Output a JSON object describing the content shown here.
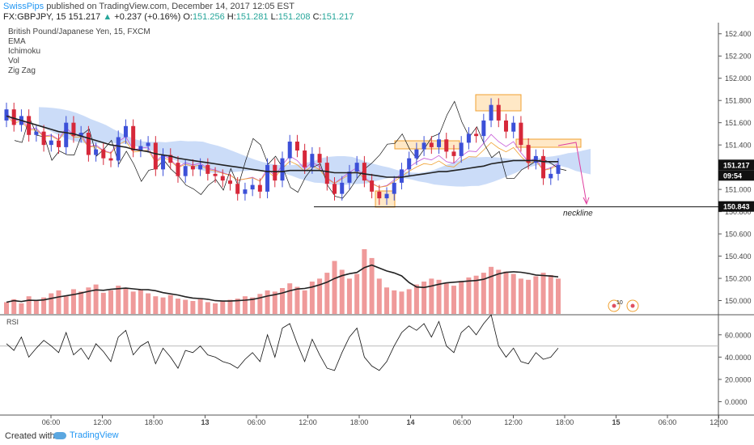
{
  "header": {
    "user": "SwissPips",
    "published": "published on TradingView.com, December 14, 2017 12:05 EST",
    "symbol": "FX:GBPJPY, 15",
    "last": "151.217",
    "change": "+0.237 (+0.16%)",
    "o_label": "O:",
    "o": "151.256",
    "h_label": "H:",
    "h": "151.281",
    "l_label": "L:",
    "l": "151.208",
    "c_label": "C:",
    "c": "151.217"
  },
  "legend": {
    "title": "British Pound/Japanese Yen, 15, FXCM",
    "items": [
      "EMA",
      "Ichimoku",
      "Vol",
      "Zig Zag"
    ]
  },
  "annotations": {
    "neckline": "neckline",
    "event_badge": "10"
  },
  "price_badges": {
    "last": "151.217",
    "countdown": "09:54",
    "neckline_price": "150.843"
  },
  "rsi_label": "RSI",
  "footer": {
    "created": "Created with",
    "brand": "TradingView"
  },
  "colors": {
    "up": "#26a69a",
    "candle_up": "#3c50d8",
    "candle_down": "#d6283a",
    "ema": "#222222",
    "cloud": "#b5cdf5",
    "zigzag": "#111111",
    "tenkan": "#c455d6",
    "kijun": "#f0a030",
    "volume": "#ef9a9a",
    "box": "#ffcc80",
    "arrow": "#e040a0"
  },
  "chart_data": {
    "type": "line",
    "price_axis": {
      "ticks": [
        "152.400",
        "152.200",
        "152.000",
        "151.800",
        "151.600",
        "151.400",
        "151.200",
        "151.000",
        "150.800",
        "150.600",
        "150.400",
        "150.200",
        "150.000"
      ],
      "range": [
        149.88,
        152.5
      ]
    },
    "rsi_axis": {
      "ticks": [
        "60.0000",
        "40.0000",
        "20.0000",
        "0.0000"
      ],
      "range": [
        -12,
        78
      ]
    },
    "time_axis": {
      "ticks": [
        "06:00",
        "12:00",
        "18:00",
        "13",
        "06:00",
        "12:00",
        "18:00",
        "14",
        "06:00",
        "12:00",
        "18:00",
        "15",
        "06:00",
        "12:00"
      ]
    },
    "price_series": {
      "close": [
        151.72,
        151.58,
        151.66,
        151.49,
        151.52,
        151.4,
        151.44,
        151.38,
        151.6,
        151.48,
        151.51,
        151.31,
        151.36,
        151.28,
        151.26,
        151.47,
        151.57,
        151.35,
        151.39,
        151.42,
        151.18,
        151.31,
        151.24,
        151.12,
        151.21,
        151.18,
        151.22,
        151.14,
        151.12,
        151.08,
        151.05,
        150.96,
        151.0,
        151.04,
        150.98,
        151.22,
        151.08,
        151.28,
        151.43,
        151.35,
        151.2,
        151.32,
        151.24,
        151.05,
        150.96,
        151.06,
        151.16,
        151.24,
        151.08,
        150.98,
        150.92,
        150.96,
        151.06,
        151.18,
        151.28,
        151.36,
        151.42,
        151.38,
        151.45,
        151.34,
        151.3,
        151.42,
        151.5,
        151.48,
        151.62,
        151.76,
        151.62,
        151.52,
        151.6,
        151.4,
        151.24,
        151.3,
        151.1,
        151.14,
        151.22
      ],
      "open": [
        151.62,
        151.72,
        151.58,
        151.66,
        151.49,
        151.52,
        151.4,
        151.44,
        151.38,
        151.6,
        151.48,
        151.51,
        151.31,
        151.36,
        151.28,
        151.26,
        151.47,
        151.57,
        151.35,
        151.39,
        151.42,
        151.18,
        151.31,
        151.24,
        151.12,
        151.21,
        151.18,
        151.22,
        151.14,
        151.12,
        151.08,
        151.05,
        150.96,
        151.0,
        151.04,
        150.98,
        151.22,
        151.08,
        151.28,
        151.43,
        151.35,
        151.2,
        151.32,
        151.24,
        151.05,
        150.96,
        151.06,
        151.16,
        151.24,
        151.08,
        150.98,
        150.92,
        150.96,
        151.06,
        151.18,
        151.28,
        151.36,
        151.42,
        151.38,
        151.45,
        151.34,
        151.3,
        151.42,
        151.5,
        151.48,
        151.62,
        151.76,
        151.62,
        151.52,
        151.6,
        151.4,
        151.24,
        151.3,
        151.1,
        151.14
      ],
      "ema": [
        151.66,
        151.64,
        151.62,
        151.6,
        151.58,
        151.56,
        151.54,
        151.52,
        151.51,
        151.5,
        151.48,
        151.46,
        151.44,
        151.42,
        151.4,
        151.39,
        151.38,
        151.36,
        151.35,
        151.34,
        151.32,
        151.31,
        151.3,
        151.28,
        151.27,
        151.26,
        151.25,
        151.24,
        151.23,
        151.22,
        151.21,
        151.2,
        151.19,
        151.18,
        151.17,
        151.16,
        151.16,
        151.16,
        151.17,
        151.17,
        151.17,
        151.17,
        151.17,
        151.16,
        151.15,
        151.15,
        151.15,
        151.15,
        151.14,
        151.13,
        151.12,
        151.11,
        151.11,
        151.11,
        151.12,
        151.13,
        151.14,
        151.15,
        151.16,
        151.16,
        151.17,
        151.18,
        151.19,
        151.2,
        151.21,
        151.23,
        151.24,
        151.25,
        151.26,
        151.26,
        151.26,
        151.26,
        151.25,
        151.25,
        151.25
      ]
    },
    "neckline": 150.843,
    "volume": [
      20,
      25,
      18,
      30,
      22,
      28,
      35,
      40,
      30,
      42,
      38,
      45,
      50,
      36,
      40,
      48,
      44,
      38,
      42,
      35,
      30,
      28,
      32,
      26,
      24,
      22,
      25,
      20,
      18,
      22,
      24,
      26,
      30,
      28,
      34,
      40,
      38,
      44,
      52,
      46,
      40,
      55,
      60,
      70,
      90,
      75,
      60,
      68,
      110,
      95,
      60,
      45,
      40,
      38,
      42,
      50,
      55,
      60,
      58,
      52,
      48,
      56,
      62,
      65,
      70,
      80,
      75,
      72,
      68,
      60,
      58,
      64,
      70,
      66,
      60
    ],
    "rsi": [
      52,
      46,
      58,
      40,
      48,
      55,
      50,
      44,
      62,
      42,
      48,
      38,
      52,
      45,
      36,
      58,
      64,
      42,
      50,
      54,
      34,
      48,
      40,
      30,
      46,
      44,
      50,
      42,
      40,
      36,
      34,
      30,
      38,
      44,
      36,
      60,
      40,
      66,
      70,
      52,
      36,
      56,
      42,
      30,
      28,
      44,
      58,
      66,
      40,
      32,
      28,
      36,
      50,
      62,
      68,
      64,
      70,
      58,
      72,
      50,
      44,
      62,
      68,
      60,
      70,
      78,
      50,
      40,
      48,
      36,
      34,
      44,
      38,
      40,
      48
    ]
  }
}
